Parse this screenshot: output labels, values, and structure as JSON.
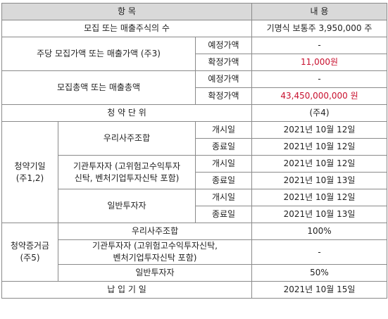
{
  "header": {
    "col_item": "항 목",
    "col_content": "내 용"
  },
  "rows": {
    "shares": {
      "label": "모집 또는 매출주식의 수",
      "value": "기명식 보통주  3,950,000 주"
    },
    "price_per_share": {
      "label": "주당 모집가액 또는 매출가액 (주3)",
      "expected_label": "예정가액",
      "expected_value": "-",
      "confirmed_label": "확정가액",
      "confirmed_value": "11,000원"
    },
    "total": {
      "label": "모집총액 또는 매출총액",
      "expected_label": "예정가액",
      "expected_value": "-",
      "confirmed_label": "확정가액",
      "confirmed_value": "43,450,000,000 원"
    },
    "unit": {
      "label": "청 약 단 위",
      "value": "(주4)"
    },
    "subscription_dates": {
      "label_line1": "청약기일",
      "label_line2": "(주1,2)",
      "groups": [
        {
          "name": "우리사주조합",
          "start_label": "개시일",
          "start_value": "2021년 10월 12일",
          "end_label": "종료일",
          "end_value": "2021년 10월 12일"
        },
        {
          "name_line1": "기관투자자 (고위험고수익투자",
          "name_line2": "신탁, 벤처기업투자신탁 포함)",
          "start_label": "개시일",
          "start_value": "2021년 10월 12일",
          "end_label": "종료일",
          "end_value": "2021년 10월 13일"
        },
        {
          "name": "일반투자자",
          "start_label": "개시일",
          "start_value": "2021년 10월 12일",
          "end_label": "종료일",
          "end_value": "2021년 10월 13일"
        }
      ]
    },
    "deposit": {
      "label_line1": "청약증거금",
      "label_line2": "(주5)",
      "items": [
        {
          "name": "우리사주조합",
          "value": "100%"
        },
        {
          "name_line1": "기관투자자 (고위험고수익투자신탁,",
          "name_line2": "벤처기업투자신탁 포함)",
          "value": "-"
        },
        {
          "name": "일반투자자",
          "value": "50%"
        }
      ]
    },
    "payment": {
      "label": "납 입 기 일",
      "value": "2021년 10월 15일"
    }
  },
  "colors": {
    "header_bg": "#d9d9d9",
    "border": "#8a8a8a",
    "highlight_red": "#c8102e"
  }
}
